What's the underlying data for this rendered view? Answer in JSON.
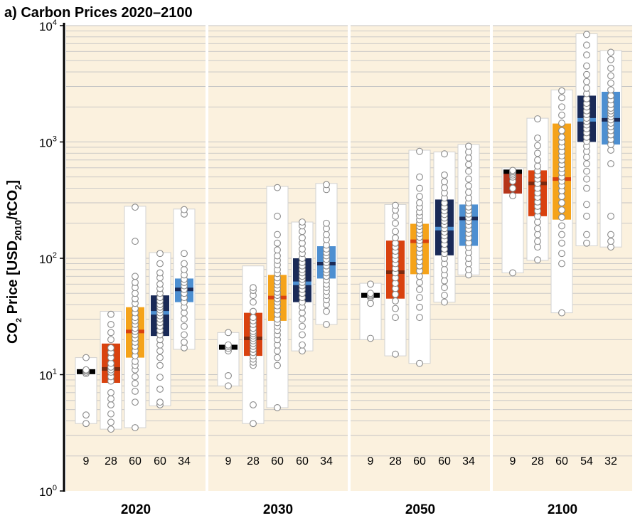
{
  "chart_data": {
    "type": "box",
    "title": "a) Carbon Prices 2020–2100",
    "ylabel": {
      "prefix": "CO",
      "sub1": "2",
      "mid": " Price [USD",
      "sub2": "2010",
      "mid2": "/tCO",
      "sub3": "2",
      "suffix": "]"
    },
    "yscale": "log",
    "ylim": [
      1,
      10000
    ],
    "yticks": [
      {
        "base": "10",
        "exp": "0",
        "value": 1
      },
      {
        "base": "10",
        "exp": "1",
        "value": 10
      },
      {
        "base": "10",
        "exp": "2",
        "value": 100
      },
      {
        "base": "10",
        "exp": "3",
        "value": 1000
      },
      {
        "base": "10",
        "exp": "4",
        "value": 10000
      }
    ],
    "colors": {
      "category_1": "#000000",
      "category_2": "#d9420f",
      "category_3": "#f5a31a",
      "category_4": "#1a2a57",
      "category_5": "#4d8fd1",
      "median_1": "#d9420f",
      "median_2": "#7a2a0f",
      "median_3": "#d9420f",
      "median_4": "#4d8fd1",
      "median_5": "#1a2a57",
      "panel_bg": "#fbf1de",
      "range_fill": "#ffffff",
      "point_fill": "#ffffff",
      "point_stroke": "#8a8a8a",
      "grid": "#c4c4c4"
    },
    "panels": [
      {
        "year": "2020",
        "boxes": [
          {
            "count": "9",
            "range": [
              3.8,
              14
            ],
            "iqr": [
              10.3,
              10.9
            ],
            "median": 10.6,
            "points": [
              3.8,
              4.5,
              10.2,
              10.5,
              10.8,
              11,
              14
            ]
          },
          {
            "count": "28",
            "range": [
              3.4,
              35
            ],
            "iqr": [
              8.5,
              18.5
            ],
            "median": 11.2,
            "points": [
              3.4,
              3.9,
              4.6,
              5.5,
              6.2,
              7,
              8.8,
              9.6,
              10.5,
              11,
              11.6,
              12.5,
              14,
              15.5,
              17,
              20,
              23,
              27,
              33
            ]
          },
          {
            "count": "60",
            "range": [
              3.5,
              280
            ],
            "iqr": [
              14,
              38
            ],
            "median": 23.5,
            "points": [
              3.5,
              5.8,
              7.2,
              8.4,
              9.6,
              11,
              12,
              13,
              14.5,
              16,
              17.5,
              19,
              20.5,
              22,
              23.5,
              25,
              27,
              29,
              31,
              34,
              37,
              41,
              45,
              50,
              56,
              62,
              70,
              140,
              275
            ]
          },
          {
            "count": "60",
            "range": [
              5.4,
              112
            ],
            "iqr": [
              21.5,
              48
            ],
            "median": 34,
            "points": [
              5.5,
              5.8,
              7.5,
              9.5,
              12,
              14,
              16,
              18,
              20,
              22,
              24,
              26,
              28,
              30,
              32,
              34,
              36,
              38,
              40,
              43,
              46,
              50,
              55,
              60,
              68,
              75,
              90,
              110
            ]
          },
          {
            "count": "34",
            "range": [
              16.5,
              265
            ],
            "iqr": [
              42,
              67
            ],
            "median": 54,
            "points": [
              17,
              19,
              22,
              26,
              30,
              34,
              38,
              42,
              46,
              50,
              54,
              58,
              62,
              66,
              72,
              80,
              90,
              110,
              240,
              262
            ]
          }
        ]
      },
      {
        "year": "2030",
        "boxes": [
          {
            "count": "9",
            "range": [
              8,
              23
            ],
            "iqr": [
              16.2,
              18
            ],
            "median": 17.2,
            "points": [
              8,
              9.8,
              16,
              16.8,
              17.4,
              18,
              23
            ]
          },
          {
            "count": "28",
            "range": [
              3.8,
              86
            ],
            "iqr": [
              14.5,
              34
            ],
            "median": 20.5,
            "points": [
              3.8,
              5.5,
              12,
              12.8,
              13.6,
              14.5,
              15.5,
              16.5,
              17.5,
              18.5,
              19.5,
              20.5,
              21.5,
              22.5,
              23.5,
              25,
              27,
              29,
              31,
              35,
              42,
              48,
              53,
              56
            ]
          },
          {
            "count": "60",
            "range": [
              5.2,
              415
            ],
            "iqr": [
              29,
              72
            ],
            "median": 46,
            "points": [
              5.2,
              12,
              14,
              16,
              18,
              20,
              22,
              24,
              26,
              28,
              30,
              33,
              36,
              39,
              42,
              45,
              48,
              51,
              55,
              59,
              63,
              68,
              74,
              80,
              88,
              96,
              105,
              118,
              135,
              160,
              230,
              405
            ]
          },
          {
            "count": "60",
            "range": [
              16,
              205
            ],
            "iqr": [
              42,
              100
            ],
            "median": 61,
            "points": [
              16,
              18,
              22,
              26,
              30,
              34,
              38,
              42,
              46,
              50,
              54,
              58,
              62,
              66,
              70,
              75,
              80,
              86,
              92,
              100,
              110,
              120,
              135,
              150,
              170,
              190,
              205
            ]
          },
          {
            "count": "34",
            "range": [
              27,
              440
            ],
            "iqr": [
              67,
              127
            ],
            "median": 90,
            "points": [
              27,
              35,
              40,
              44,
              48,
              52,
              56,
              60,
              65,
              70,
              75,
              80,
              86,
              92,
              98,
              105,
              112,
              120,
              130,
              145,
              160,
              180,
              200,
              390,
              430
            ]
          }
        ]
      },
      {
        "year": "2050",
        "boxes": [
          {
            "count": "9",
            "range": [
              20,
              61
            ],
            "iqr": [
              46,
              50
            ],
            "median": 48,
            "points": [
              20.5,
              41,
              46,
              47.5,
              48.5,
              50,
              60
            ]
          },
          {
            "count": "28",
            "range": [
              14.5,
              290
            ],
            "iqr": [
              45,
              142
            ],
            "median": 76,
            "points": [
              15,
              31,
              37,
              43,
              49,
              55,
              61,
              68,
              75,
              82,
              90,
              98,
              106,
              115,
              125,
              135,
              150,
              170,
              200,
              230,
              260,
              285
            ]
          },
          {
            "count": "60",
            "range": [
              12.5,
              850
            ],
            "iqr": [
              73,
              198
            ],
            "median": 140,
            "points": [
              12.5,
              31,
              38,
              46,
              54,
              62,
              70,
              78,
              86,
              94,
              103,
              112,
              122,
              132,
              142,
              152,
              163,
              175,
              188,
              200,
              215,
              232,
              250,
              275,
              300,
              340,
              400,
              500,
              830
            ]
          },
          {
            "count": "60",
            "range": [
              42,
              820
            ],
            "iqr": [
              106,
              320
            ],
            "median": 180,
            "points": [
              42,
              48,
              56,
              64,
              72,
              80,
              90,
              100,
              110,
              120,
              132,
              144,
              156,
              168,
              180,
              194,
              208,
              222,
              238,
              256,
              276,
              300,
              330,
              365,
              405,
              455,
              520,
              790
            ]
          },
          {
            "count": "34",
            "range": [
              72,
              950
            ],
            "iqr": [
              128,
              290
            ],
            "median": 220,
            "points": [
              72,
              80,
              90,
              100,
              112,
              124,
              136,
              150,
              164,
              178,
              192,
              208,
              224,
              240,
              258,
              276,
              300,
              330,
              370,
              420,
              480,
              560,
              640,
              730,
              820,
              920
            ]
          }
        ]
      },
      {
        "year": "2100",
        "boxes": [
          {
            "count": "9",
            "range": [
              75,
              600
            ],
            "iqr": [
              360,
              555
            ],
            "median": 515,
            "points": [
              75,
              345,
              400,
              460,
              500,
              520,
              540,
              555,
              570
            ]
          },
          {
            "count": "28",
            "range": [
              96,
              1600
            ],
            "iqr": [
              230,
              570
            ],
            "median": 440,
            "points": [
              97,
              125,
              140,
              160,
              180,
              205,
              230,
              255,
              280,
              305,
              335,
              365,
              400,
              440,
              480,
              520,
              565,
              620,
              700,
              800,
              930,
              1080,
              1580
            ]
          },
          {
            "count": "60",
            "range": [
              34,
              2800
            ],
            "iqr": [
              215,
              1440
            ],
            "median": 480,
            "points": [
              34,
              90,
              110,
              135,
              160,
              190,
              225,
              260,
              300,
              340,
              380,
              420,
              460,
              500,
              545,
              590,
              640,
              700,
              760,
              830,
              910,
              1000,
              1100,
              1250,
              1450,
              1700,
              2000,
              2400,
              2750
            ]
          },
          {
            "count": "54",
            "range": [
              128,
              8500
            ],
            "iqr": [
              1000,
              2500
            ],
            "median": 1550,
            "points": [
              135,
              160,
              230,
              290,
              400,
              480,
              560,
              650,
              740,
              830,
              920,
              1010,
              1100,
              1200,
              1300,
              1400,
              1500,
              1600,
              1720,
              1850,
              2000,
              2150,
              2350,
              2600,
              2900,
              3300,
              3800,
              4500,
              5600,
              6800,
              8400
            ]
          },
          {
            "count": "32",
            "range": [
              125,
              6100
            ],
            "iqr": [
              950,
              2700
            ],
            "median": 1550,
            "points": [
              125,
              140,
              160,
              230,
              650,
              850,
              950,
              1050,
              1150,
              1250,
              1350,
              1450,
              1550,
              1650,
              1750,
              1850,
              1950,
              2100,
              2300,
              2500,
              2800,
              3200,
              3700,
              4300,
              5100,
              5900
            ]
          }
        ]
      }
    ]
  }
}
